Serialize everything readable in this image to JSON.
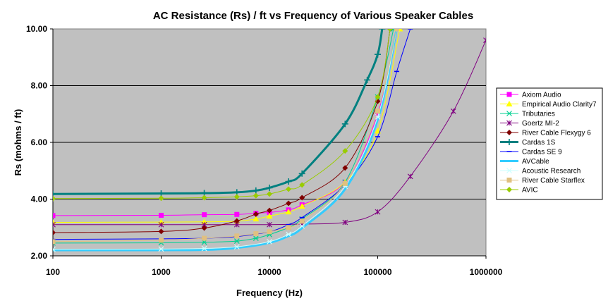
{
  "chart_data": {
    "type": "line",
    "title": "AC Resistance (Rs) / ft  vs Frequency of Various Speaker Cables",
    "xlabel": "Frequency (Hz)",
    "ylabel": "Rs (mohms / ft)",
    "x_scale": "log",
    "xlim": [
      100,
      1000000
    ],
    "ylim": [
      2.0,
      10.0
    ],
    "x_ticks": [
      100,
      1000,
      10000,
      100000,
      1000000
    ],
    "x_tick_labels": [
      "100",
      "1000",
      "10000",
      "100000",
      "1000000"
    ],
    "y_ticks": [
      2,
      4,
      6,
      8,
      10
    ],
    "y_tick_labels": [
      "2.00",
      "4.00",
      "6.00",
      "8.00",
      "10.00"
    ],
    "grid": "horizontal",
    "plot_background": "#c0c0c0",
    "legend_position": "right",
    "series": [
      {
        "name": "Axiom Audio",
        "color": "#ff00ff",
        "marker": "square",
        "width": 1,
        "x": [
          100,
          1000,
          2500,
          5000,
          7500,
          10000,
          15000,
          20000,
          50000,
          100000,
          150000
        ],
        "y": [
          3.42,
          3.43,
          3.45,
          3.46,
          3.5,
          3.53,
          3.62,
          3.8,
          4.6,
          7.0,
          10.0
        ]
      },
      {
        "name": "Empirical Audio Clarity7",
        "color": "#ffff00",
        "marker": "triangle",
        "width": 1,
        "x": [
          100,
          1000,
          2500,
          5000,
          7500,
          10000,
          15000,
          20000,
          50000,
          100000,
          160000
        ],
        "y": [
          3.18,
          3.19,
          3.2,
          3.22,
          3.3,
          3.4,
          3.55,
          3.75,
          4.6,
          6.4,
          10.0
        ]
      },
      {
        "name": "Tributaries",
        "color": "#00d090",
        "marker": "star",
        "width": 1,
        "x": [
          100,
          1000,
          2500,
          5000,
          7500,
          10000,
          15000,
          20000,
          50000,
          100000,
          140000
        ],
        "y": [
          2.45,
          2.46,
          2.48,
          2.52,
          2.62,
          2.75,
          3.0,
          3.3,
          4.6,
          7.6,
          10.0
        ]
      },
      {
        "name": "Goertz MI-2",
        "color": "#800080",
        "marker": "asterisk",
        "width": 1,
        "x": [
          100,
          1000,
          2500,
          5000,
          10000,
          20000,
          50000,
          100000,
          200000,
          500000,
          1000000
        ],
        "y": [
          3.1,
          3.1,
          3.1,
          3.1,
          3.1,
          3.12,
          3.18,
          3.55,
          4.8,
          7.1,
          9.6
        ]
      },
      {
        "name": "River Cable Flexygy 6",
        "color": "#800000",
        "marker": "diamond",
        "width": 1,
        "x": [
          100,
          1000,
          2500,
          5000,
          7500,
          10000,
          15000,
          20000,
          50000,
          100000,
          130000
        ],
        "y": [
          2.82,
          2.86,
          2.98,
          3.23,
          3.47,
          3.6,
          3.85,
          4.05,
          5.1,
          7.45,
          10.0
        ]
      },
      {
        "name": "Cardas 1S",
        "color": "#008080",
        "marker": "plus",
        "width": 3,
        "x": [
          100,
          1000,
          2500,
          5000,
          7500,
          10000,
          15000,
          20000,
          50000,
          80000,
          100000,
          110000
        ],
        "y": [
          4.18,
          4.2,
          4.21,
          4.24,
          4.3,
          4.4,
          4.62,
          4.9,
          6.65,
          8.2,
          9.1,
          10.0
        ]
      },
      {
        "name": "Cardas SE 9",
        "color": "#0000ff",
        "marker": "dash",
        "width": 1,
        "x": [
          100,
          1000,
          2500,
          5000,
          10000,
          15000,
          20000,
          50000,
          100000,
          150000,
          200000
        ],
        "y": [
          2.58,
          2.6,
          2.62,
          2.68,
          2.85,
          3.1,
          3.35,
          4.5,
          6.2,
          8.5,
          10.0
        ]
      },
      {
        "name": "AVCable",
        "color": "#33ccff",
        "marker": "none",
        "width": 3,
        "x": [
          100,
          1000,
          2500,
          5000,
          10000,
          15000,
          20000,
          50000,
          100000,
          150000
        ],
        "y": [
          2.2,
          2.2,
          2.21,
          2.28,
          2.46,
          2.7,
          2.98,
          4.35,
          6.8,
          10.0
        ]
      },
      {
        "name": "Acoustic Research",
        "color": "#ccffff",
        "marker": "star",
        "width": 1,
        "x": [
          100,
          1000,
          2500,
          5000,
          10000,
          15000,
          20000,
          50000,
          100000,
          150000
        ],
        "y": [
          2.23,
          2.24,
          2.26,
          2.32,
          2.5,
          2.76,
          3.05,
          4.45,
          6.9,
          10.0
        ]
      },
      {
        "name": "River Cable Starflex",
        "color": "#e0c080",
        "marker": "square",
        "width": 1,
        "x": [
          100,
          1000,
          2500,
          5000,
          7500,
          10000,
          15000,
          20000,
          50000,
          100000,
          150000
        ],
        "y": [
          2.5,
          2.55,
          2.62,
          2.7,
          2.78,
          2.85,
          3.0,
          3.22,
          4.55,
          7.1,
          10.0
        ]
      },
      {
        "name": "AVIC",
        "color": "#99cc00",
        "marker": "diamond",
        "width": 1,
        "x": [
          100,
          1000,
          2500,
          5000,
          7500,
          10000,
          15000,
          20000,
          50000,
          100000,
          130000
        ],
        "y": [
          4.02,
          4.03,
          4.05,
          4.08,
          4.12,
          4.18,
          4.35,
          4.5,
          5.7,
          7.6,
          10.0
        ]
      }
    ]
  }
}
